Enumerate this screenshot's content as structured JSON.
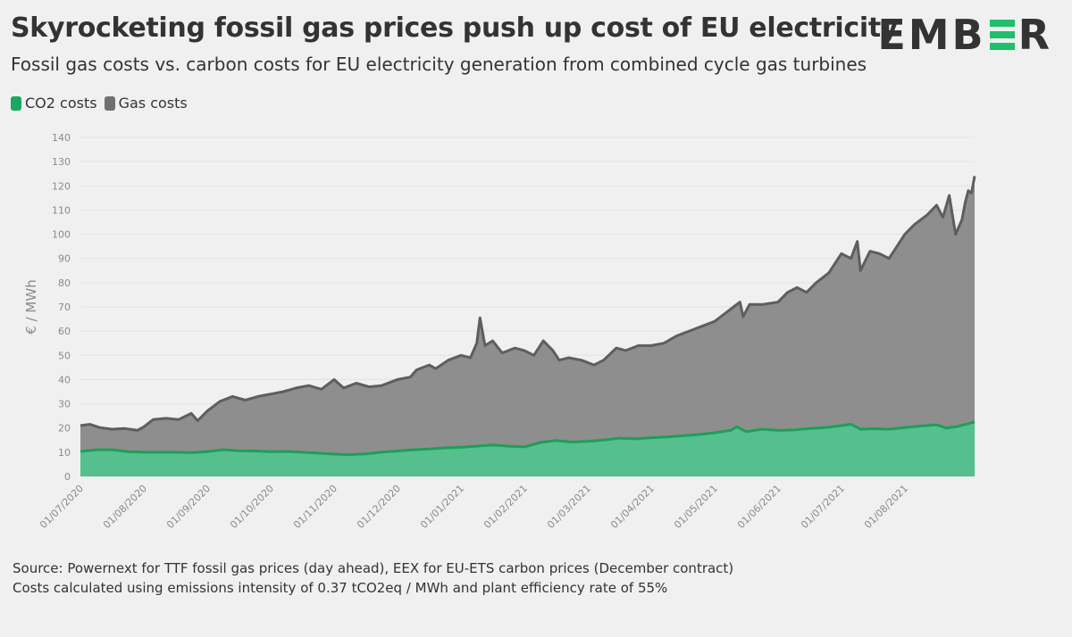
{
  "header": {
    "title": "Skyrocketing fossil gas prices push up cost of EU electricity",
    "subtitle": "Fossil gas costs vs. carbon costs for EU electricity generation from combined cycle gas turbines",
    "logo_text_left": "EMB",
    "logo_text_right": "R"
  },
  "legend": {
    "items": [
      {
        "label": "CO2 costs",
        "color": "#1aa760"
      },
      {
        "label": "Gas costs",
        "color": "#707070"
      }
    ]
  },
  "footer": {
    "source_line1": "Source: Powernext for TTF fossil gas prices (day ahead), EEX for EU-ETS carbon prices (December contract)",
    "source_line2": "Costs calculated using emissions intensity of 0.37 tCO2eq / MWh and plant efficiency rate of 55%"
  },
  "colors": {
    "co2_fill": "#55c08d",
    "co2_line": "#1f9e58",
    "gas_fill": "#8e8e8e",
    "gas_line": "#5e5e5e",
    "grid": "#e2e2e2",
    "tick": "#8a8a8a"
  },
  "chart_data": {
    "type": "area",
    "stacked": true,
    "ylabel": "€ / MWh",
    "ylim": [
      0,
      140
    ],
    "yticks": [
      0,
      10,
      20,
      30,
      40,
      50,
      60,
      70,
      80,
      90,
      100,
      110,
      120,
      130,
      140
    ],
    "x_tick_labels": [
      "01/07/2020",
      "01/08/2020",
      "01/09/2020",
      "01/10/2020",
      "01/11/2020",
      "01/12/2020",
      "01/01/2021",
      "01/02/2021",
      "01/03/2021",
      "01/04/2021",
      "01/05/2021",
      "01/06/2021",
      "01/07/2021",
      "01/08/2021"
    ],
    "x_range_months": [
      0,
      14.1
    ],
    "series": [
      {
        "name": "CO2 costs",
        "points": [
          [
            0,
            10.3
          ],
          [
            0.25,
            11
          ],
          [
            0.5,
            11
          ],
          [
            0.75,
            10.2
          ],
          [
            1,
            10
          ],
          [
            1.25,
            10
          ],
          [
            1.5,
            10
          ],
          [
            1.75,
            9.8
          ],
          [
            2,
            10.2
          ],
          [
            2.25,
            11
          ],
          [
            2.5,
            10.6
          ],
          [
            2.75,
            10.5
          ],
          [
            3,
            10.2
          ],
          [
            3.25,
            10.3
          ],
          [
            3.5,
            10
          ],
          [
            3.75,
            9.6
          ],
          [
            4,
            9.2
          ],
          [
            4.25,
            9
          ],
          [
            4.5,
            9.3
          ],
          [
            4.75,
            10
          ],
          [
            5,
            10.5
          ],
          [
            5.25,
            11
          ],
          [
            5.5,
            11.3
          ],
          [
            5.75,
            11.8
          ],
          [
            6,
            12
          ],
          [
            6.25,
            12.5
          ],
          [
            6.5,
            13
          ],
          [
            6.75,
            12.5
          ],
          [
            7,
            12.2
          ],
          [
            7.25,
            14
          ],
          [
            7.5,
            14.8
          ],
          [
            7.75,
            14.2
          ],
          [
            8,
            14.5
          ],
          [
            8.25,
            15
          ],
          [
            8.5,
            15.8
          ],
          [
            8.75,
            15.5
          ],
          [
            9,
            16
          ],
          [
            9.25,
            16.3
          ],
          [
            9.5,
            16.8
          ],
          [
            9.75,
            17.3
          ],
          [
            10,
            18
          ],
          [
            10.25,
            19
          ],
          [
            10.35,
            20.5
          ],
          [
            10.5,
            18.5
          ],
          [
            10.75,
            19.5
          ],
          [
            11,
            19
          ],
          [
            11.25,
            19.2
          ],
          [
            11.5,
            19.8
          ],
          [
            11.75,
            20.2
          ],
          [
            12,
            21
          ],
          [
            12.15,
            21.5
          ],
          [
            12.3,
            19.5
          ],
          [
            12.5,
            19.7
          ],
          [
            12.75,
            19.5
          ],
          [
            13,
            20.2
          ],
          [
            13.25,
            20.8
          ],
          [
            13.5,
            21.3
          ],
          [
            13.65,
            20
          ],
          [
            13.8,
            20.5
          ],
          [
            14,
            21.8
          ],
          [
            14.1,
            22.5
          ]
        ]
      },
      {
        "name": "Gas costs",
        "points": [
          [
            0,
            21
          ],
          [
            0.15,
            21.5
          ],
          [
            0.3,
            20.2
          ],
          [
            0.5,
            19.5
          ],
          [
            0.7,
            19.8
          ],
          [
            0.9,
            19
          ],
          [
            1,
            20.5
          ],
          [
            1.15,
            23.5
          ],
          [
            1.35,
            24
          ],
          [
            1.55,
            23.5
          ],
          [
            1.75,
            26
          ],
          [
            1.85,
            23
          ],
          [
            2,
            27
          ],
          [
            2.2,
            31
          ],
          [
            2.4,
            33
          ],
          [
            2.6,
            31.5
          ],
          [
            2.8,
            33
          ],
          [
            3,
            34
          ],
          [
            3.2,
            35
          ],
          [
            3.4,
            36.5
          ],
          [
            3.6,
            37.5
          ],
          [
            3.8,
            36
          ],
          [
            4,
            40
          ],
          [
            4.15,
            36.5
          ],
          [
            4.35,
            38.5
          ],
          [
            4.55,
            37
          ],
          [
            4.75,
            37.5
          ],
          [
            5,
            40
          ],
          [
            5.2,
            41
          ],
          [
            5.3,
            44
          ],
          [
            5.5,
            46
          ],
          [
            5.6,
            44.5
          ],
          [
            5.8,
            48
          ],
          [
            6,
            50
          ],
          [
            6.15,
            49
          ],
          [
            6.25,
            55
          ],
          [
            6.3,
            65.5
          ],
          [
            6.38,
            54
          ],
          [
            6.5,
            56
          ],
          [
            6.65,
            51
          ],
          [
            6.85,
            53
          ],
          [
            7,
            52
          ],
          [
            7.15,
            50
          ],
          [
            7.3,
            56
          ],
          [
            7.45,
            52
          ],
          [
            7.55,
            48
          ],
          [
            7.7,
            49
          ],
          [
            7.9,
            48
          ],
          [
            8.1,
            46
          ],
          [
            8.25,
            48
          ],
          [
            8.45,
            53
          ],
          [
            8.6,
            52
          ],
          [
            8.8,
            54
          ],
          [
            9,
            54
          ],
          [
            9.2,
            55
          ],
          [
            9.4,
            58
          ],
          [
            9.6,
            60
          ],
          [
            9.8,
            62
          ],
          [
            10,
            64
          ],
          [
            10.2,
            68
          ],
          [
            10.3,
            70
          ],
          [
            10.4,
            72
          ],
          [
            10.45,
            66
          ],
          [
            10.55,
            71
          ],
          [
            10.75,
            71
          ],
          [
            11,
            72
          ],
          [
            11.15,
            76
          ],
          [
            11.3,
            78
          ],
          [
            11.45,
            76
          ],
          [
            11.6,
            80
          ],
          [
            11.8,
            84
          ],
          [
            12,
            92
          ],
          [
            12.15,
            90
          ],
          [
            12.25,
            97
          ],
          [
            12.3,
            85
          ],
          [
            12.45,
            93
          ],
          [
            12.6,
            92
          ],
          [
            12.75,
            90
          ],
          [
            13,
            100
          ],
          [
            13.15,
            104
          ],
          [
            13.35,
            108
          ],
          [
            13.5,
            112
          ],
          [
            13.6,
            107
          ],
          [
            13.7,
            116
          ],
          [
            13.8,
            100
          ],
          [
            13.9,
            106
          ],
          [
            13.95,
            113
          ],
          [
            14,
            118
          ],
          [
            14.05,
            117
          ],
          [
            14.1,
            124
          ]
        ]
      }
    ]
  }
}
